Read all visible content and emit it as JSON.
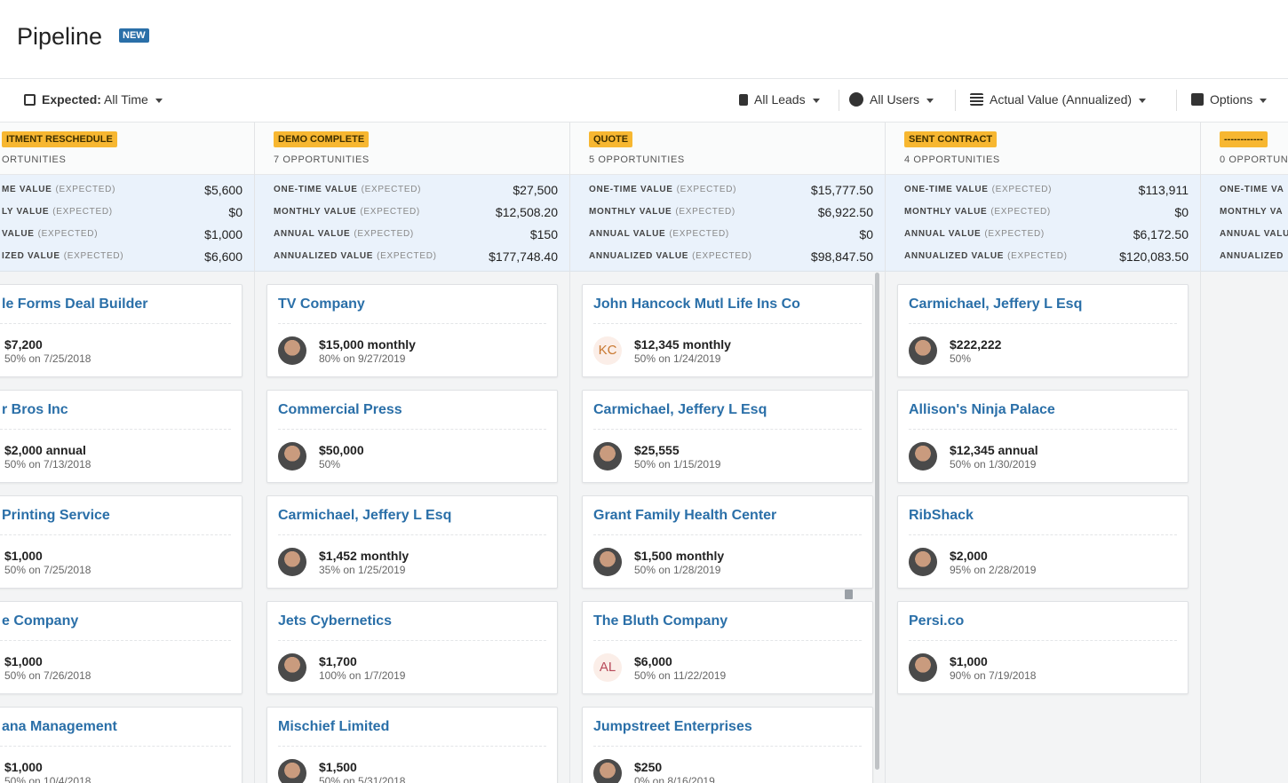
{
  "header": {
    "title": "Pipeline",
    "badge": "NEW"
  },
  "toolbar": {
    "expected_label": "Expected:",
    "expected_value": "All Time",
    "leads": "All Leads",
    "users": "All Users",
    "sort": "Actual Value (Annualized)",
    "options": "Options"
  },
  "columns": [
    {
      "stage": "ITMENT RESCHEDULE",
      "count": "ORTUNITIES",
      "stats": [
        {
          "label": "ME VALUE",
          "qualifier": "(EXPECTED)",
          "value": "$5,600"
        },
        {
          "label": "LY VALUE",
          "qualifier": "(EXPECTED)",
          "value": "$0"
        },
        {
          "label": "VALUE",
          "qualifier": "(EXPECTED)",
          "value": "$1,000"
        },
        {
          "label": "IZED VALUE",
          "qualifier": "(EXPECTED)",
          "value": "$6,600"
        }
      ],
      "cards": [
        {
          "name": "le Forms Deal Builder",
          "amount": "$7,200",
          "detail": "50% on 7/25/2018"
        },
        {
          "name": "r Bros Inc",
          "amount": "$2,000 annual",
          "detail": "50% on 7/13/2018"
        },
        {
          "name": "Printing Service",
          "amount": "$1,000",
          "detail": "50% on 7/25/2018"
        },
        {
          "name": "e Company",
          "amount": "$1,000",
          "detail": "50% on 7/26/2018"
        },
        {
          "name": "ana Management",
          "amount": "$1,000",
          "detail": "50% on 10/4/2018"
        }
      ]
    },
    {
      "stage": "DEMO COMPLETE",
      "count": "7 OPPORTUNITIES",
      "stats": [
        {
          "label": "ONE-TIME VALUE",
          "qualifier": "(EXPECTED)",
          "value": "$27,500"
        },
        {
          "label": "MONTHLY VALUE",
          "qualifier": "(EXPECTED)",
          "value": "$12,508.20"
        },
        {
          "label": "ANNUAL VALUE",
          "qualifier": "(EXPECTED)",
          "value": "$150"
        },
        {
          "label": "ANNUALIZED VALUE",
          "qualifier": "(EXPECTED)",
          "value": "$177,748.40"
        }
      ],
      "cards": [
        {
          "name": "TV Company",
          "amount": "$15,000 monthly",
          "detail": "80% on 9/27/2019"
        },
        {
          "name": "Commercial Press",
          "amount": "$50,000",
          "detail": "50%"
        },
        {
          "name": "Carmichael, Jeffery L Esq",
          "amount": "$1,452 monthly",
          "detail": "35% on 1/25/2019"
        },
        {
          "name": "Jets Cybernetics",
          "amount": "$1,700",
          "detail": "100% on 1/7/2019"
        },
        {
          "name": "Mischief Limited",
          "amount": "$1,500",
          "detail": "50% on 5/31/2018"
        }
      ]
    },
    {
      "stage": "QUOTE",
      "count": "5 OPPORTUNITIES",
      "stats": [
        {
          "label": "ONE-TIME VALUE",
          "qualifier": "(EXPECTED)",
          "value": "$15,777.50"
        },
        {
          "label": "MONTHLY VALUE",
          "qualifier": "(EXPECTED)",
          "value": "$6,922.50"
        },
        {
          "label": "ANNUAL VALUE",
          "qualifier": "(EXPECTED)",
          "value": "$0"
        },
        {
          "label": "ANNUALIZED VALUE",
          "qualifier": "(EXPECTED)",
          "value": "$98,847.50"
        }
      ],
      "cards": [
        {
          "name": "John Hancock Mutl Life Ins Co",
          "amount": "$12,345 monthly",
          "detail": "50% on 1/24/2019",
          "initials": "KC"
        },
        {
          "name": "Carmichael, Jeffery L Esq",
          "amount": "$25,555",
          "detail": "50% on 1/15/2019"
        },
        {
          "name": "Grant Family Health Center",
          "amount": "$1,500 monthly",
          "detail": "50% on 1/28/2019"
        },
        {
          "name": "The Bluth Company",
          "amount": "$6,000",
          "detail": "50% on 11/22/2019",
          "initials": "AL"
        },
        {
          "name": "Jumpstreet Enterprises",
          "amount": "$250",
          "detail": "0% on 8/16/2019"
        }
      ]
    },
    {
      "stage": "SENT CONTRACT",
      "count": "4 OPPORTUNITIES",
      "stats": [
        {
          "label": "ONE-TIME VALUE",
          "qualifier": "(EXPECTED)",
          "value": "$113,911"
        },
        {
          "label": "MONTHLY VALUE",
          "qualifier": "(EXPECTED)",
          "value": "$0"
        },
        {
          "label": "ANNUAL VALUE",
          "qualifier": "(EXPECTED)",
          "value": "$6,172.50"
        },
        {
          "label": "ANNUALIZED VALUE",
          "qualifier": "(EXPECTED)",
          "value": "$120,083.50"
        }
      ],
      "cards": [
        {
          "name": "Carmichael, Jeffery L Esq",
          "amount": "$222,222",
          "detail": "50%"
        },
        {
          "name": "Allison's Ninja Palace",
          "amount": "$12,345 annual",
          "detail": "50% on 1/30/2019"
        },
        {
          "name": "RibShack",
          "amount": "$2,000",
          "detail": "95% on 2/28/2019"
        },
        {
          "name": "Persi.co",
          "amount": "$1,000",
          "detail": "90% on 7/19/2018"
        }
      ]
    },
    {
      "stage": "------------",
      "count": "0 OPPORTUN",
      "stats": [
        {
          "label": "ONE-TIME VA"
        },
        {
          "label": "MONTHLY VA"
        },
        {
          "label": "ANNUAL VALU"
        },
        {
          "label": "ANNUALIZED"
        }
      ],
      "cards": []
    }
  ]
}
